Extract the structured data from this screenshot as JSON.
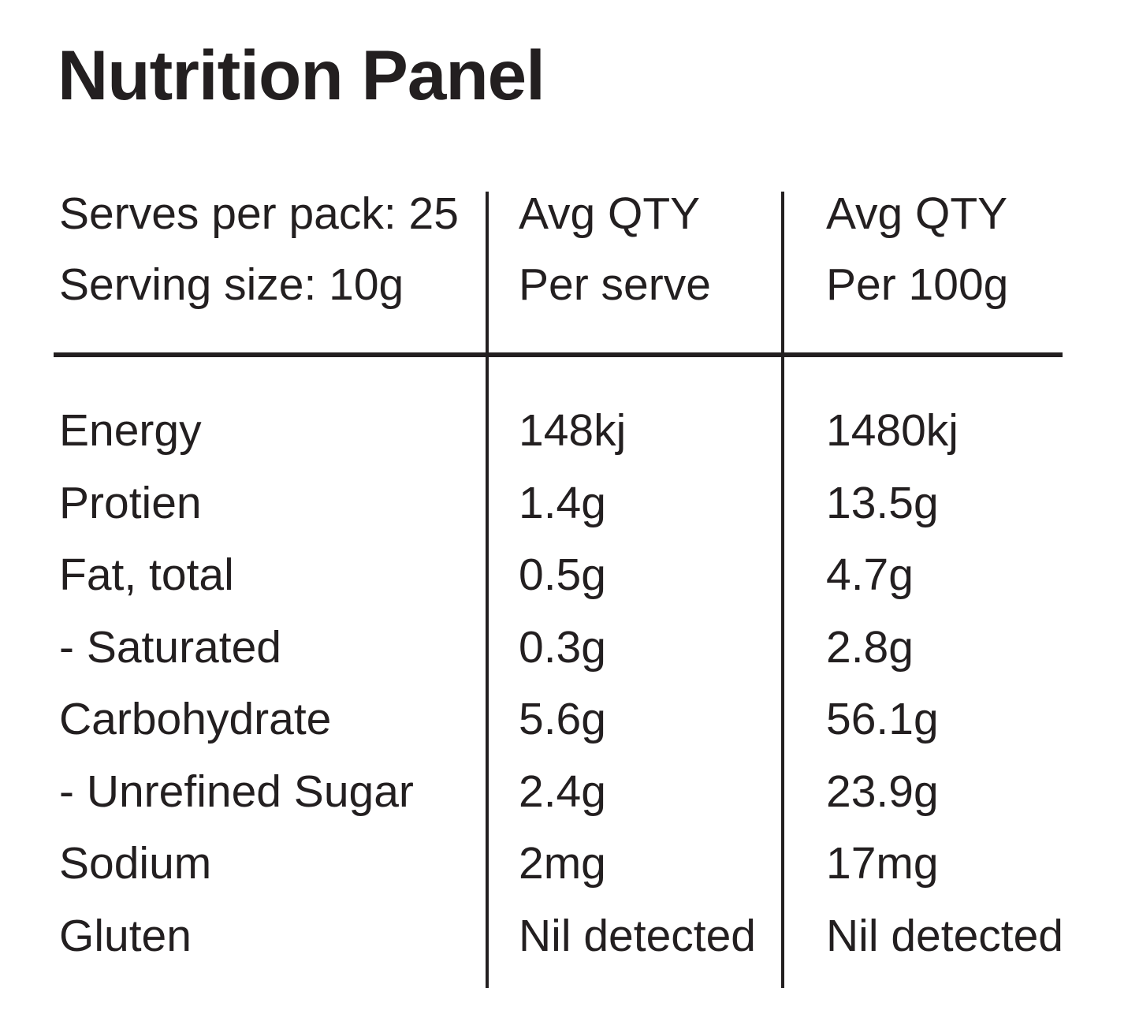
{
  "page": {
    "title": "Nutrition Panel",
    "text_color": "#231f20",
    "background_color": "#ffffff"
  },
  "table": {
    "serving_info": {
      "line1": "Serves per pack: 25",
      "line2": "Serving size: 10g"
    },
    "columns": [
      {
        "line1": "Avg QTY",
        "line2": "Per serve"
      },
      {
        "line1": "Avg QTY",
        "line2": "Per 100g"
      }
    ],
    "rows": [
      {
        "label": "Energy",
        "per_serve": "148kj",
        "per_100g": "1480kj"
      },
      {
        "label": "Protien",
        "per_serve": "1.4g",
        "per_100g": "13.5g"
      },
      {
        "label": "Fat, total",
        "per_serve": "0.5g",
        "per_100g": "4.7g"
      },
      {
        "label": "- Saturated",
        "per_serve": "0.3g",
        "per_100g": "2.8g"
      },
      {
        "label": "Carbohydrate",
        "per_serve": "5.6g",
        "per_100g": "56.1g"
      },
      {
        "label": "- Unrefined Sugar",
        "per_serve": "2.4g",
        "per_100g": "23.9g"
      },
      {
        "label": "Sodium",
        "per_serve": "2mg",
        "per_100g": "17mg"
      },
      {
        "label": "Gluten",
        "per_serve": "Nil detected",
        "per_100g": "Nil detected"
      }
    ]
  }
}
